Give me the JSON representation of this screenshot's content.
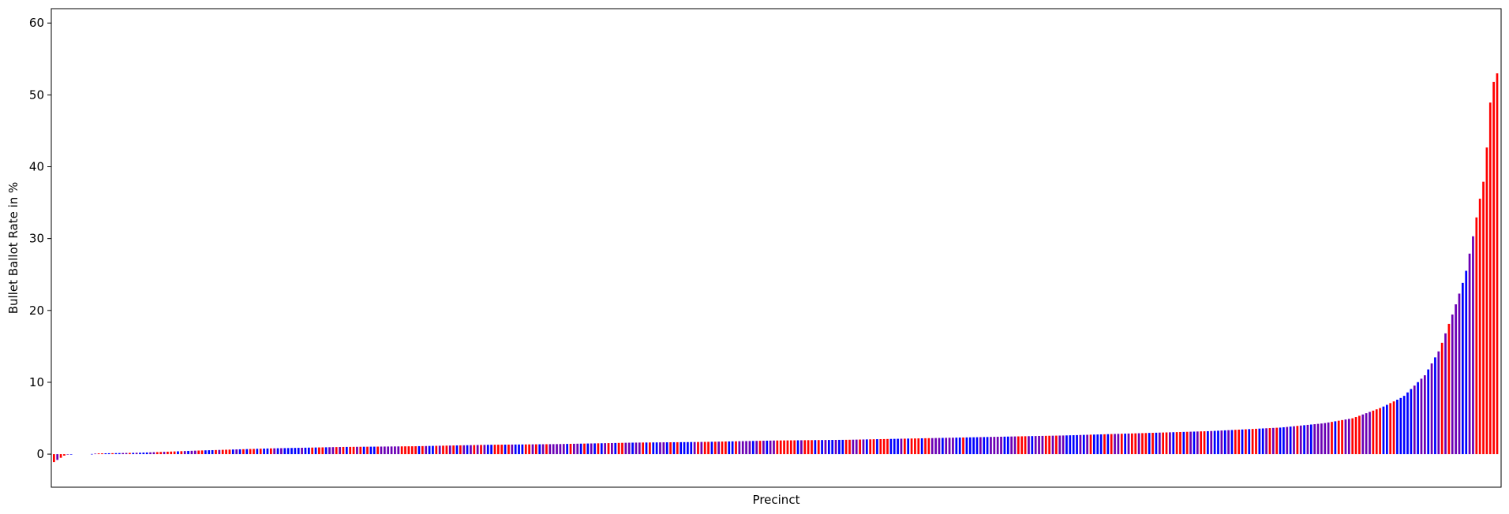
{
  "chart_data": {
    "type": "bar",
    "title": "",
    "xlabel": "Precinct",
    "ylabel": "Bullet Ballot Rate in %",
    "ylim": [
      -4.6,
      62
    ],
    "yticks": [
      0,
      10,
      20,
      30,
      40,
      50,
      60
    ],
    "grid": false,
    "legend": "none",
    "colors": {
      "red": "#ff0000",
      "blue": "#0000ff",
      "purple": "#6b00b4",
      "frame": "#000000"
    },
    "bar_color_sequence": "blue-red-purple pattern (one color per precinct)",
    "bar_count": 420,
    "curve_profile": [
      [
        0.0,
        -1.1
      ],
      [
        0.004,
        -0.6
      ],
      [
        0.008,
        -0.1
      ],
      [
        0.012,
        0.0
      ],
      [
        0.025,
        0.0
      ],
      [
        0.03,
        0.1
      ],
      [
        0.06,
        0.2
      ],
      [
        0.1,
        0.5
      ],
      [
        0.15,
        0.8
      ],
      [
        0.2,
        1.0
      ],
      [
        0.25,
        1.1
      ],
      [
        0.3,
        1.3
      ],
      [
        0.35,
        1.4
      ],
      [
        0.4,
        1.6
      ],
      [
        0.45,
        1.7
      ],
      [
        0.5,
        1.9
      ],
      [
        0.55,
        2.0
      ],
      [
        0.6,
        2.2
      ],
      [
        0.65,
        2.4
      ],
      [
        0.7,
        2.6
      ],
      [
        0.75,
        2.9
      ],
      [
        0.8,
        3.2
      ],
      [
        0.85,
        3.7
      ],
      [
        0.88,
        4.3
      ],
      [
        0.9,
        5.0
      ],
      [
        0.92,
        6.5
      ],
      [
        0.935,
        8.0
      ],
      [
        0.95,
        11.0
      ],
      [
        0.96,
        14.5
      ],
      [
        0.97,
        20.0
      ],
      [
        0.978,
        25.0
      ],
      [
        0.983,
        30.0
      ],
      [
        0.988,
        35.5
      ],
      [
        0.99,
        37.0
      ],
      [
        0.993,
        43.0
      ],
      [
        0.996,
        51.0
      ],
      [
        1.0,
        53.0
      ]
    ]
  }
}
